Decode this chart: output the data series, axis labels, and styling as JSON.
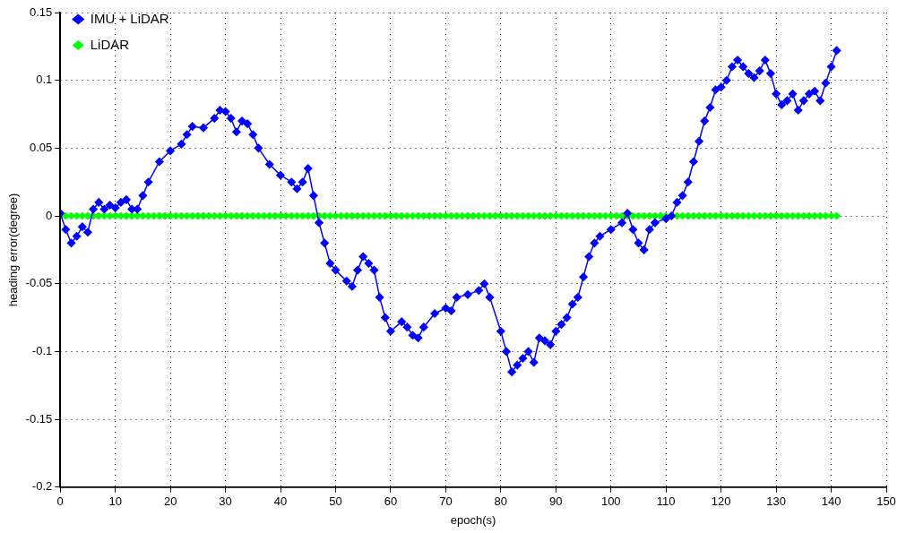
{
  "chart_data": {
    "type": "line",
    "xlabel": "epoch(s)",
    "ylabel": "heading error(degree)",
    "xlim": [
      0,
      150
    ],
    "xticks": [
      0,
      10,
      20,
      30,
      40,
      50,
      60,
      70,
      80,
      90,
      100,
      110,
      120,
      130,
      140,
      150
    ],
    "ylim": [
      -0.2,
      0.15
    ],
    "yticks": [
      -0.2,
      -0.15,
      -0.1,
      -0.05,
      0,
      0.05,
      0.1,
      0.15
    ],
    "grid": true,
    "legend": "top left",
    "series": [
      {
        "name": "IMU + LiDAR",
        "color": "#0000ff",
        "type": "line",
        "marker": "diamond",
        "line_style": "solid",
        "x": [
          0,
          1,
          2,
          3,
          4,
          5,
          6,
          7,
          8,
          9,
          10,
          11,
          12,
          13,
          14,
          15,
          16,
          18,
          20,
          22,
          23,
          24,
          26,
          28,
          29,
          30,
          31,
          32,
          33,
          34,
          35,
          36,
          38,
          40,
          42,
          43,
          44,
          45,
          46,
          47,
          48,
          49,
          50,
          52,
          53,
          54,
          55,
          56,
          57,
          58,
          59,
          60,
          62,
          63,
          64,
          65,
          66,
          68,
          70,
          71,
          72,
          74,
          76,
          77,
          78,
          80,
          81,
          82,
          83,
          84,
          85,
          86,
          87,
          88,
          89,
          90,
          91,
          92,
          93,
          94,
          95,
          96,
          97,
          98,
          100,
          102,
          103,
          104,
          105,
          106,
          107,
          108,
          110,
          111,
          112,
          113,
          114,
          115,
          116,
          117,
          118,
          119,
          120,
          121,
          122,
          123,
          124,
          125,
          126,
          127,
          128,
          129,
          130,
          131,
          132,
          133,
          134,
          135,
          136,
          137,
          138,
          139,
          140,
          141
        ],
        "values": [
          0.002,
          -0.01,
          -0.02,
          -0.015,
          -0.008,
          -0.012,
          0.005,
          0.01,
          0.005,
          0.008,
          0.006,
          0.01,
          0.012,
          0.005,
          0.005,
          0.015,
          0.025,
          0.04,
          0.048,
          0.053,
          0.06,
          0.066,
          0.065,
          0.072,
          0.078,
          0.077,
          0.072,
          0.062,
          0.07,
          0.068,
          0.06,
          0.05,
          0.038,
          0.03,
          0.025,
          0.02,
          0.025,
          0.035,
          0.015,
          -0.005,
          -0.02,
          -0.035,
          -0.04,
          -0.048,
          -0.052,
          -0.04,
          -0.03,
          -0.035,
          -0.04,
          -0.06,
          -0.075,
          -0.085,
          -0.078,
          -0.082,
          -0.088,
          -0.09,
          -0.082,
          -0.072,
          -0.068,
          -0.07,
          -0.06,
          -0.058,
          -0.055,
          -0.05,
          -0.06,
          -0.085,
          -0.1,
          -0.115,
          -0.11,
          -0.105,
          -0.1,
          -0.108,
          -0.09,
          -0.092,
          -0.095,
          -0.085,
          -0.08,
          -0.075,
          -0.065,
          -0.06,
          -0.045,
          -0.03,
          -0.02,
          -0.015,
          -0.01,
          -0.005,
          0.002,
          -0.01,
          -0.02,
          -0.025,
          -0.01,
          -0.005,
          -0.002,
          0,
          0.01,
          0.015,
          0.025,
          0.04,
          0.055,
          0.07,
          0.08,
          0.093,
          0.095,
          0.1,
          0.11,
          0.115,
          0.11,
          0.105,
          0.102,
          0.107,
          0.115,
          0.105,
          0.09,
          0.082,
          0.085,
          0.09,
          0.078,
          0.085,
          0.09,
          0.092,
          0.085,
          0.098,
          0.11,
          0.122
        ]
      },
      {
        "name": "LiDAR",
        "color": "#00ff00",
        "type": "scatter",
        "marker": "diamond",
        "x": [
          0,
          1,
          2,
          3,
          4,
          5,
          6,
          7,
          8,
          9,
          10,
          11,
          12,
          13,
          14,
          15,
          16,
          17,
          18,
          19,
          20,
          21,
          22,
          23,
          24,
          25,
          26,
          27,
          28,
          29,
          30,
          31,
          32,
          33,
          34,
          35,
          36,
          37,
          38,
          39,
          40,
          41,
          42,
          43,
          44,
          45,
          46,
          47,
          48,
          49,
          50,
          51,
          52,
          53,
          54,
          55,
          56,
          57,
          58,
          59,
          60,
          61,
          62,
          63,
          64,
          65,
          66,
          67,
          68,
          69,
          70,
          71,
          72,
          73,
          74,
          75,
          76,
          77,
          78,
          79,
          80,
          81,
          82,
          83,
          84,
          85,
          86,
          87,
          88,
          89,
          90,
          91,
          92,
          93,
          94,
          95,
          96,
          97,
          98,
          99,
          100,
          101,
          102,
          103,
          104,
          105,
          106,
          107,
          108,
          109,
          110,
          111,
          112,
          113,
          114,
          115,
          116,
          117,
          118,
          119,
          120,
          121,
          122,
          123,
          124,
          125,
          126,
          127,
          128,
          129,
          130,
          131,
          132,
          133,
          134,
          135,
          136,
          137,
          138,
          139,
          140,
          141
        ],
        "values": [
          0,
          0,
          0,
          0,
          0,
          0,
          0,
          0,
          0,
          0,
          0,
          0,
          0,
          0,
          0,
          0,
          0,
          0,
          0,
          0,
          0,
          0,
          0,
          0,
          0,
          0,
          0,
          0,
          0,
          0,
          0,
          0,
          0,
          0,
          0,
          0,
          0,
          0,
          0,
          0,
          0,
          0,
          0,
          0,
          0,
          0,
          0,
          0,
          0,
          0,
          0,
          0,
          0,
          0,
          0,
          0,
          0,
          0,
          0,
          0,
          0,
          0,
          0,
          0,
          0,
          0,
          0,
          0,
          0,
          0,
          0,
          0,
          0,
          0,
          0,
          0,
          0,
          0,
          0,
          0,
          0,
          0,
          0,
          0,
          0,
          0,
          0,
          0,
          0,
          0,
          0,
          0,
          0,
          0,
          0,
          0,
          0,
          0,
          0,
          0,
          0,
          0,
          0,
          0,
          0,
          0,
          0,
          0,
          0,
          0,
          0,
          0,
          0,
          0,
          0,
          0,
          0,
          0,
          0,
          0,
          0,
          0,
          0,
          0,
          0,
          0,
          0,
          0,
          0,
          0,
          0,
          0,
          0,
          0,
          0,
          0,
          0,
          0,
          0,
          0,
          0,
          0
        ]
      }
    ]
  }
}
